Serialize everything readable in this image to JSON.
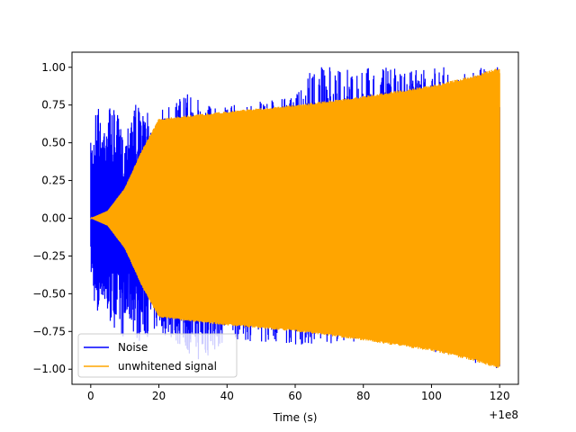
{
  "chart_data": {
    "type": "line",
    "title": "",
    "xlabel": "Time (s)",
    "ylabel": "",
    "x_offset_label": "+1e8",
    "xlim": [
      -5.5,
      125.5
    ],
    "ylim": [
      -1.1,
      1.1
    ],
    "x_ticks": [
      0,
      20,
      40,
      60,
      80,
      100,
      120
    ],
    "x_tick_labels": [
      "0",
      "20",
      "40",
      "60",
      "80",
      "100",
      "120"
    ],
    "y_ticks": [
      -1.0,
      -0.75,
      -0.5,
      -0.25,
      0.0,
      0.25,
      0.5,
      0.75,
      1.0
    ],
    "y_tick_labels": [
      "−1.00",
      "−0.75",
      "−0.50",
      "−0.25",
      "0.00",
      "0.25",
      "0.50",
      "0.75",
      "1.00"
    ],
    "grid": false,
    "legend_position": "lower-left",
    "series": [
      {
        "name": "Noise",
        "color": "#0000ff",
        "x_range": [
          0,
          120
        ],
        "envelope_upper": [
          [
            0,
            0.5
          ],
          [
            1,
            0.62
          ],
          [
            2,
            0.86
          ],
          [
            3,
            0.6
          ],
          [
            5,
            0.78
          ],
          [
            8,
            0.68
          ],
          [
            10,
            0.5
          ],
          [
            11,
            0.68
          ],
          [
            12,
            0.84
          ],
          [
            15,
            0.7
          ],
          [
            20,
            0.7
          ],
          [
            27,
            0.83
          ],
          [
            40,
            0.75
          ],
          [
            60,
            0.8
          ],
          [
            64,
            1.0
          ],
          [
            85,
            1.0
          ],
          [
            120,
            1.0
          ]
        ],
        "envelope_lower": [
          [
            0,
            -0.38
          ],
          [
            1,
            -0.55
          ],
          [
            2,
            -0.75
          ],
          [
            3,
            -0.5
          ],
          [
            5,
            -0.7
          ],
          [
            8,
            -0.74
          ],
          [
            10,
            -0.82
          ],
          [
            11,
            -0.7
          ],
          [
            14,
            -0.82
          ],
          [
            20,
            -0.75
          ],
          [
            33,
            -0.97
          ],
          [
            40,
            -0.8
          ],
          [
            64,
            -0.85
          ],
          [
            85,
            -0.8
          ],
          [
            120,
            -1.0
          ]
        ]
      },
      {
        "name": "unwhitened signal",
        "color": "#ffa500",
        "x_range": [
          0,
          120
        ],
        "envelope_upper": [
          [
            0,
            0.0
          ],
          [
            5,
            0.05
          ],
          [
            10,
            0.2
          ],
          [
            15,
            0.45
          ],
          [
            20,
            0.66
          ],
          [
            40,
            0.71
          ],
          [
            60,
            0.75
          ],
          [
            80,
            0.81
          ],
          [
            100,
            0.88
          ],
          [
            113,
            0.95
          ],
          [
            120,
            1.0
          ]
        ],
        "envelope_lower": [
          [
            0,
            0.0
          ],
          [
            5,
            -0.05
          ],
          [
            10,
            -0.2
          ],
          [
            15,
            -0.45
          ],
          [
            20,
            -0.66
          ],
          [
            40,
            -0.71
          ],
          [
            60,
            -0.75
          ],
          [
            80,
            -0.81
          ],
          [
            100,
            -0.88
          ],
          [
            113,
            -0.95
          ],
          [
            120,
            -1.0
          ]
        ]
      }
    ]
  }
}
